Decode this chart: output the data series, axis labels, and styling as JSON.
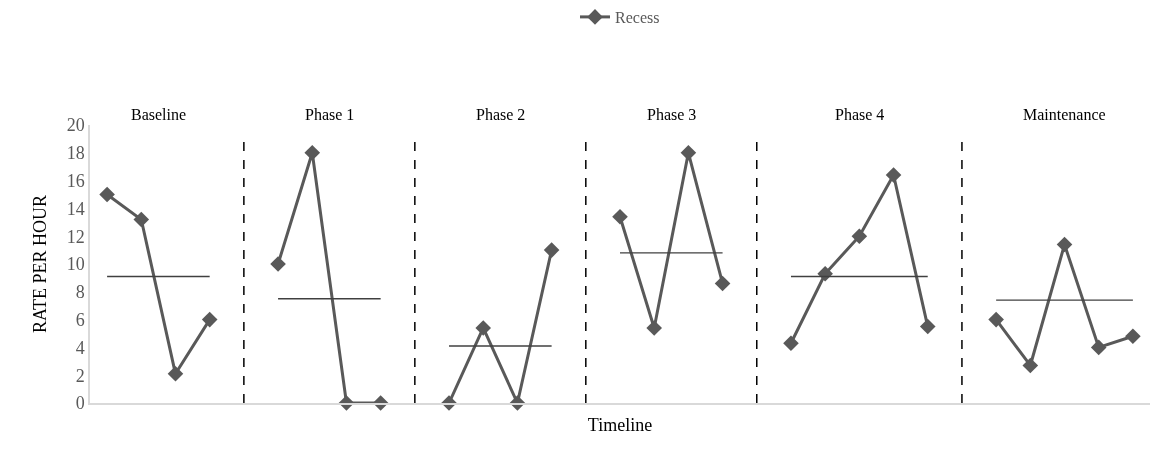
{
  "chart_data": {
    "type": "line",
    "ylabel": "RATE PER HOUR",
    "xlabel": "Timeline",
    "legend": "top",
    "grid": "x",
    "tick_labels": "y",
    "marker": "diamond",
    "line_style": "solid",
    "ylim": [
      0,
      20
    ],
    "yticks": [
      0,
      2,
      4,
      6,
      8,
      10,
      12,
      14,
      16,
      18,
      20
    ],
    "categories": [
      null,
      null,
      null,
      null,
      null,
      null,
      null,
      null,
      null,
      null,
      null,
      null,
      null,
      null,
      null,
      null,
      null,
      null,
      null,
      null,
      null,
      null,
      null,
      null,
      null,
      null,
      null,
      null,
      null,
      null,
      null
    ],
    "series": [
      {
        "name": "Recess",
        "color": "#595959",
        "values": [
          15,
          13.2,
          2.1,
          6,
          null,
          10,
          18,
          0,
          0,
          null,
          0,
          5.4,
          0,
          11,
          null,
          13.4,
          5.4,
          18,
          8.6,
          null,
          4.3,
          9.3,
          12,
          16.4,
          5.5,
          null,
          6,
          2.7,
          11.4,
          4,
          4.8
        ]
      },
      {
        "type": "line",
        "color": "#404040",
        "marker": "none",
        "values": [
          9.1,
          9.1,
          9.1,
          9.1,
          null,
          7.5,
          7.5,
          7.5,
          7.5,
          null,
          4.1,
          4.1,
          4.1,
          4.1,
          null,
          10.8,
          10.8,
          10.8,
          10.8,
          null,
          9.1,
          9.1,
          9.1,
          9.1,
          9.1,
          null,
          7.4,
          7.4,
          7.4,
          7.4,
          7.4
        ]
      }
    ],
    "annotations": [
      "Baseline",
      "Phase 1",
      "Phase 2",
      "Phase 3",
      "Phase 4",
      "Maintenance"
    ]
  }
}
